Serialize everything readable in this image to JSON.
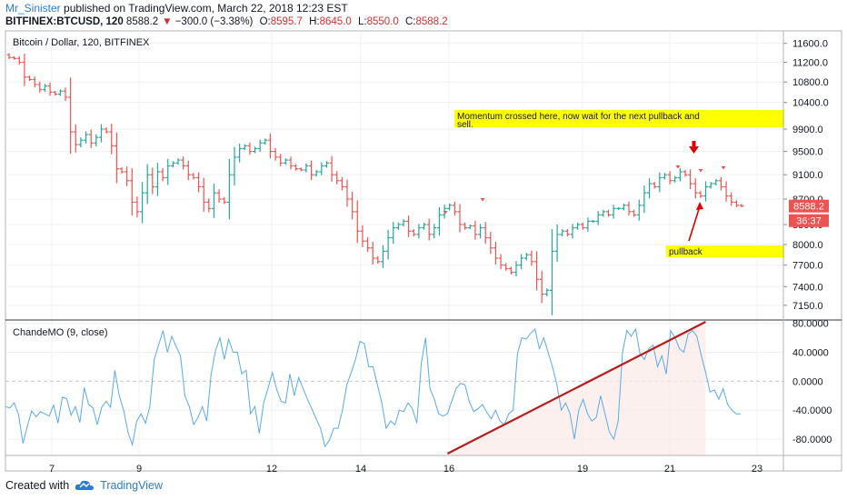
{
  "header": {
    "username": "Mr_Sinister",
    "published": "published on TradingView.com, March 22, 2018 12:23 EST",
    "symbol": "BITFINEX:BTCUSD, 120",
    "last": "8588.2",
    "change": "−300.0 (−3.38%)",
    "o_label": "O:",
    "o_value": "8595.7",
    "h_label": "H:",
    "h_value": "8645.0",
    "l_label": "L:",
    "l_value": "8550.0",
    "c_label": "C:",
    "c_value": "8588.2"
  },
  "footer": {
    "created_with": "Created with",
    "brand": "TradingView"
  },
  "colors": {
    "up": "#26a69a",
    "down": "#ef5350",
    "oscillator": "#5aaae8",
    "trendline": "#b71c1c",
    "highlight": "#ffff00"
  },
  "chart_data": [
    {
      "type": "ohlc",
      "title": "Bitcoin / Dollar, 120, BITFINEX",
      "y_axis": {
        "ticks": [
          11600,
          11200,
          10800,
          10400,
          9900,
          9500,
          9100,
          8700,
          8300,
          8000,
          7700,
          7400,
          7150
        ],
        "ylim": [
          7100,
          11750
        ],
        "scale": "log"
      },
      "x_axis": {
        "ticks": [
          "7",
          "9",
          "12",
          "14",
          "16",
          "19",
          "21",
          "23"
        ]
      },
      "last_price_label": "8588.2",
      "countdown_label": "36:37",
      "closes": [
        11300,
        11280,
        11200,
        10900,
        10850,
        10750,
        10650,
        10720,
        10600,
        10560,
        10620,
        10500,
        9850,
        9620,
        9700,
        9800,
        9650,
        9750,
        9900,
        9850,
        9600,
        9200,
        9150,
        9000,
        8650,
        8500,
        8800,
        9100,
        8900,
        9150,
        9050,
        9250,
        9300,
        9350,
        9250,
        9100,
        9050,
        8900,
        8650,
        8550,
        8800,
        8700,
        8650,
        9100,
        9400,
        9550,
        9600,
        9500,
        9550,
        9650,
        9700,
        9500,
        9400,
        9300,
        9350,
        9250,
        9200,
        9180,
        9250,
        9100,
        9150,
        9250,
        9300,
        9100,
        9000,
        8900,
        8700,
        8500,
        8200,
        8050,
        7950,
        7800,
        7750,
        7900,
        8100,
        8250,
        8300,
        8350,
        8200,
        8150,
        8250,
        8300,
        8150,
        8250,
        8450,
        8550,
        8600,
        8500,
        8300,
        8250,
        8280,
        8150,
        8250,
        8100,
        7950,
        7800,
        7700,
        7650,
        7600,
        7700,
        7800,
        7850,
        7750,
        7500,
        7300,
        7350,
        7900,
        8150,
        8200,
        8150,
        8250,
        8300,
        8250,
        8350,
        8350,
        8450,
        8500,
        8450,
        8550,
        8550,
        8600,
        8500,
        8450,
        8600,
        8800,
        8950,
        8900,
        9050,
        9100,
        9000,
        9050,
        9150,
        9100,
        8950,
        8800,
        8750,
        8900,
        8950,
        9000,
        8900,
        8750,
        8650,
        8600,
        8588.2
      ],
      "annotations": [
        {
          "text": "Momentum crossed here, now wait for the next pullback and sell.",
          "style": "yellow-box"
        },
        {
          "text": "pullback",
          "style": "yellow-box"
        }
      ]
    },
    {
      "type": "line",
      "title": "ChandeMO (9, close)",
      "y_axis": {
        "ticks": [
          "80.0000",
          "40.0000",
          "0.0000",
          "-40.0000",
          "-80.0000"
        ],
        "ylim": [
          -100,
          82
        ]
      },
      "values": [
        -35,
        -37,
        -30,
        -46,
        -86,
        -62,
        -41,
        -49,
        -42,
        -45,
        -48,
        -33,
        -58,
        -22,
        -24,
        -47,
        -35,
        -57,
        -9,
        -32,
        -37,
        -60,
        -36,
        -28,
        -36,
        15,
        -20,
        -40,
        -70,
        -88,
        -55,
        -45,
        -58,
        -35,
        30,
        50,
        70,
        40,
        62,
        48,
        35,
        -20,
        -35,
        -60,
        -50,
        -35,
        -55,
        10,
        42,
        60,
        30,
        58,
        40,
        40,
        10,
        15,
        -45,
        -35,
        -72,
        -30,
        -10,
        12,
        -12,
        -28,
        -30,
        10,
        -20,
        5,
        -10,
        -25,
        -38,
        -52,
        -65,
        -90,
        -82,
        -65,
        -65,
        -40,
        -5,
        12,
        30,
        55,
        52,
        20,
        20,
        -5,
        -30,
        -65,
        -55,
        -60,
        -40,
        -42,
        -30,
        -38,
        -58,
        24,
        60,
        -10,
        -25,
        -45,
        -48,
        -45,
        -27,
        -10,
        -3,
        -5,
        -28,
        -42,
        -38,
        -32,
        -43,
        -52,
        -40,
        -55,
        -60,
        -45,
        -40,
        38,
        60,
        58,
        66,
        72,
        45,
        60,
        40,
        20,
        -5,
        -40,
        -30,
        -45,
        -80,
        -40,
        -25,
        -45,
        -55,
        -50,
        -20,
        -45,
        -70,
        -80,
        -55,
        40,
        70,
        62,
        72,
        38,
        30,
        45,
        50,
        20,
        35,
        10,
        70,
        60,
        45,
        40,
        65,
        70,
        62,
        35,
        12,
        -15,
        -12,
        -25,
        -10,
        -32,
        -40,
        -45,
        -45
      ],
      "trendline": {
        "from": {
          "series_index": 101,
          "value": -100
        },
        "to": {
          "series_index": 160,
          "value": 82
        }
      }
    }
  ]
}
